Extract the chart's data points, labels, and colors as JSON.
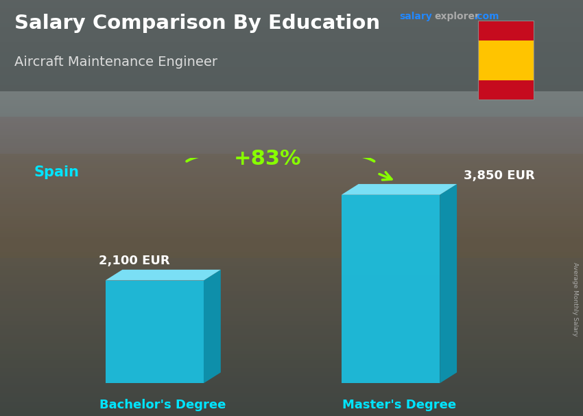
{
  "title": "Salary Comparison By Education",
  "subtitle": "Aircraft Maintenance Engineer",
  "country": "Spain",
  "categories": [
    "Bachelor's Degree",
    "Master's Degree"
  ],
  "values": [
    2100,
    3850
  ],
  "value_labels": [
    "2,100 EUR",
    "3,850 EUR"
  ],
  "pct_change": "+83%",
  "bar_color_front": "#1BBFE0",
  "bar_color_top": "#7ADFF5",
  "bar_color_side": "#0E8FAA",
  "title_color": "#ffffff",
  "subtitle_color": "#dddddd",
  "country_color": "#00E5FF",
  "value_label_color": "#ffffff",
  "xlabel_color": "#00E5FF",
  "pct_color": "#88FF00",
  "arrow_color": "#88FF00",
  "site_salary_color": "#2288FF",
  "site_explorer_color": "#999999",
  "site_com_color": "#2288FF",
  "right_label": "Average Monthly Salary",
  "flag_red": "#c60b1e",
  "flag_yellow": "#ffc400",
  "ylim_max": 4600,
  "bar_positions": [
    1.0,
    2.8
  ],
  "bar_width": 0.75,
  "figsize": [
    8.5,
    6.06
  ],
  "dpi": 100
}
